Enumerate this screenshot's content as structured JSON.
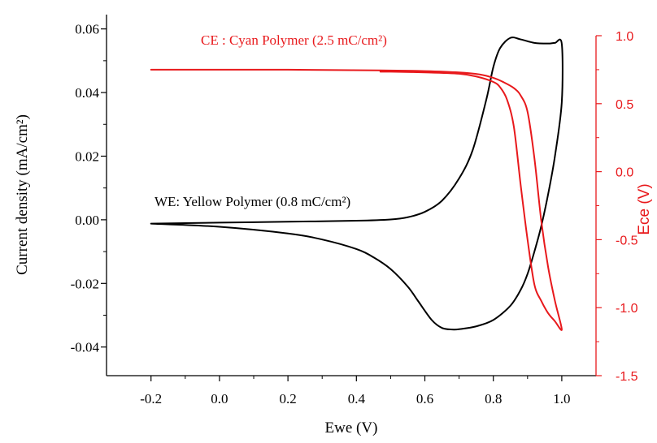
{
  "chart_data": {
    "type": "line",
    "xlabel": "Ewe (V)",
    "ylabel_left": "Current density (mA/cm²)",
    "ylabel_right": "Ece (V)",
    "xlim": [
      -0.33,
      1.1
    ],
    "ylim_left": [
      -0.049,
      0.0645
    ],
    "ylim_right": [
      -1.5,
      1.0
    ],
    "x_ticks": [
      -0.2,
      0.0,
      0.2,
      0.4,
      0.6,
      0.8,
      1.0
    ],
    "x_tick_labels": [
      "-0.2",
      "0.0",
      "0.2",
      "0.4",
      "0.6",
      "0.8",
      "1.0"
    ],
    "y_left_ticks": [
      -0.04,
      -0.02,
      0.0,
      0.02,
      0.04,
      0.06
    ],
    "y_left_tick_labels": [
      "-0.04",
      "-0.02",
      "0.00",
      "0.02",
      "0.04",
      "0.06"
    ],
    "y_right_ticks": [
      -1.5,
      -1.0,
      -0.5,
      0.0,
      0.5,
      1.0
    ],
    "y_right_tick_labels": [
      "-1.5",
      "-1.0",
      "-0.5",
      "0.0",
      "0.5",
      "1.0"
    ],
    "grid": false,
    "colors": {
      "we": "#000000",
      "ce": "#e8191c"
    },
    "annotations": {
      "we": "WE: Yellow Polymer (0.8 mC/cm²)",
      "ce": "CE : Cyan Polymer (2.5 mC/cm²)"
    },
    "series": [
      {
        "axis": "left",
        "color": "#000000",
        "x": [
          -0.2,
          0.0,
          0.2,
          0.4,
          0.5,
          0.55,
          0.6,
          0.65,
          0.7,
          0.74,
          0.78,
          0.8,
          0.82,
          0.85,
          0.88,
          0.92,
          0.96,
          0.98,
          1.0,
          1.0,
          0.98,
          0.96,
          0.94,
          0.92,
          0.9,
          0.88,
          0.85,
          0.8,
          0.75,
          0.7,
          0.68,
          0.65,
          0.62,
          0.58,
          0.55,
          0.5,
          0.45,
          0.4,
          0.3,
          0.2,
          0.0,
          -0.2
        ],
        "y": [
          -0.0012,
          -0.0009,
          -0.0006,
          -0.0003,
          0.0001,
          0.0008,
          0.0025,
          0.006,
          0.013,
          0.022,
          0.038,
          0.048,
          0.054,
          0.0572,
          0.0567,
          0.0556,
          0.0554,
          0.0556,
          0.0553,
          0.037,
          0.02,
          0.008,
          -0.002,
          -0.01,
          -0.017,
          -0.022,
          -0.027,
          -0.0315,
          -0.0335,
          -0.0344,
          -0.0345,
          -0.034,
          -0.0315,
          -0.0255,
          -0.021,
          -0.0155,
          -0.0118,
          -0.0092,
          -0.0062,
          -0.0043,
          -0.0022,
          -0.0012
        ]
      },
      {
        "axis": "right",
        "color": "#e8191c",
        "x": [
          -0.2,
          0.2,
          0.47,
          0.6,
          0.7,
          0.76,
          0.8,
          0.83,
          0.86,
          0.88,
          0.9,
          0.92,
          0.94,
          0.96,
          0.98,
          1.0,
          0.98,
          0.96,
          0.94,
          0.92,
          0.9,
          0.88,
          0.86,
          0.84,
          0.82,
          0.8,
          0.75,
          0.7,
          0.6,
          0.5,
          0.47
        ],
        "y": [
          0.75,
          0.75,
          0.745,
          0.74,
          0.73,
          0.715,
          0.69,
          0.658,
          0.615,
          0.56,
          0.44,
          0.1,
          -0.36,
          -0.7,
          -0.95,
          -1.16,
          -1.1,
          -1.04,
          -0.95,
          -0.83,
          -0.5,
          -0.1,
          0.33,
          0.53,
          0.62,
          0.66,
          0.7,
          0.72,
          0.73,
          0.735,
          0.735
        ]
      }
    ]
  }
}
